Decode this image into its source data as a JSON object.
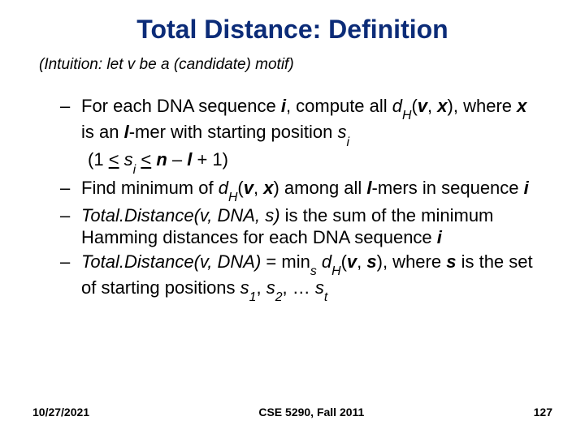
{
  "slide": {
    "title": "Total Distance: Definition",
    "title_color": "#0c2c78",
    "title_fontsize": 32,
    "subtitle": "(Intuition: let v be a (candidate) motif)",
    "subtitle_fontsize": 19,
    "body_fontsize": 22,
    "text_color": "#000000",
    "background_color": "#ffffff",
    "b1_a": "For each DNA sequence ",
    "b1_i": "i",
    "b1_b": ", compute all ",
    "b1_dh": "d",
    "b1_H": "H",
    "b1_c": "(",
    "b1_v": "v",
    "b1_d": ", ",
    "b1_x": "x",
    "b1_e": "), where ",
    "b1_x2": "x",
    "b1_f": " is an ",
    "b1_l": "l",
    "b1_g": "-mer with starting position ",
    "b1_s": "s",
    "b1_si": "i",
    "b1r_a": "(1 ",
    "b1r_le1": "<",
    "b1r_b": " ",
    "b1r_s": "s",
    "b1r_si": "i",
    "b1r_c": " ",
    "b1r_le2": "<",
    "b1r_d": "  ",
    "b1r_n": "n",
    "b1r_e": " – ",
    "b1r_l": "l",
    "b1r_f": " + 1)",
    "b2_a": "Find minimum of ",
    "b2_dh": "d",
    "b2_H": "H",
    "b2_b": "(",
    "b2_v": "v",
    "b2_c": ", ",
    "b2_x": "x",
    "b2_d": ") among all ",
    "b2_l": "l",
    "b2_e": "-mers in sequence ",
    "b2_i": "i",
    "b3_a": "Total.Distance(v, DNA, s)",
    "b3_b": " is the sum of the minimum Hamming distances for each DNA sequence ",
    "b3_i": "i",
    "b4_a": "Total.Distance(v, DNA)",
    "b4_b": " = min",
    "b4_s": "s",
    "b4_c": " ",
    "b4_dh": "d",
    "b4_H": "H",
    "b4_d": "(",
    "b4_v": "v",
    "b4_e": ", ",
    "b4_sbold": "s",
    "b4_f": "), where ",
    "b4_sbold2": "s",
    "b4_g": " is the set of starting positions ",
    "b4_s1": "s",
    "b4_1": "1",
    "b4_h": ", ",
    "b4_s2": "s",
    "b4_2": "2",
    "b4_i": ", … ",
    "b4_st": "s",
    "b4_t": "t"
  },
  "footer": {
    "date": "10/27/2021",
    "course": "CSE 5290, Fall 2011",
    "page": "127",
    "fontsize": 14
  }
}
